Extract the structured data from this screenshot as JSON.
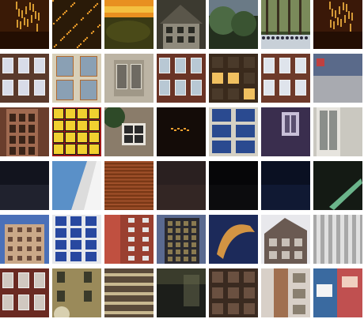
{
  "tiles": [
    {
      "name": "night-facade-lights-1",
      "bg": "#3a1a06",
      "accent": "#f2b23a",
      "kind": "lights"
    },
    {
      "name": "tree-with-lights",
      "bg": "#2a1a08",
      "accent": "#e89a2a",
      "kind": "tree-lights"
    },
    {
      "name": "sunset-hedge",
      "bg": "#4a4010",
      "accent": "#f0a020",
      "kind": "sunset"
    },
    {
      "name": "stone-house",
      "bg": "#3c3a30",
      "accent": "#8f8a7c",
      "kind": "house"
    },
    {
      "name": "trees-dusk",
      "bg": "#24301e",
      "accent": "#4c6a44",
      "kind": "trees"
    },
    {
      "name": "park-crowd",
      "bg": "#3a4a2a",
      "accent": "#c8d0d8",
      "kind": "park"
    },
    {
      "name": "night-facade-lights-2",
      "bg": "#3a1808",
      "accent": "#f0b040",
      "kind": "lights"
    },
    {
      "name": "brick-windows-1",
      "bg": "#5a3a2c",
      "accent": "#d8dce8",
      "kind": "brick-win"
    },
    {
      "name": "cream-facade-windows",
      "bg": "#d8cfb8",
      "accent": "#b06a30",
      "kind": "cream-win"
    },
    {
      "name": "stone-window",
      "bg": "#bcb4a4",
      "accent": "#6e6a62",
      "kind": "stone-win"
    },
    {
      "name": "brick-windows-2",
      "bg": "#6a3426",
      "accent": "#b8c8d4",
      "kind": "brick-win"
    },
    {
      "name": "night-windows-1",
      "bg": "#3a2a1c",
      "accent": "#f0c060",
      "kind": "night-win"
    },
    {
      "name": "brick-windows-3",
      "bg": "#6e3a2a",
      "accent": "#dfe4ec",
      "kind": "brick-win"
    },
    {
      "name": "street-pavement",
      "bg": "#7a7c84",
      "accent": "#a8aab0",
      "kind": "street"
    },
    {
      "name": "brick-tower",
      "bg": "#6a3e2c",
      "accent": "#a06a50",
      "kind": "tower"
    },
    {
      "name": "red-lit-facade",
      "bg": "#a01818",
      "accent": "#f0d030",
      "kind": "red-lit"
    },
    {
      "name": "cottage-window",
      "bg": "#8a7c6a",
      "accent": "#2e4a28",
      "kind": "cottage"
    },
    {
      "name": "dark-night-lights",
      "bg": "#140c08",
      "accent": "#f0a030",
      "kind": "dark-lights"
    },
    {
      "name": "blue-glass-windows",
      "bg": "#d4d0c4",
      "accent": "#2a4a90",
      "kind": "glass"
    },
    {
      "name": "purple-facade-window",
      "bg": "#3a2e4e",
      "accent": "#c8c0d8",
      "kind": "purple"
    },
    {
      "name": "pale-window",
      "bg": "#cac8c0",
      "accent": "#8a8e8a",
      "kind": "pale"
    },
    {
      "name": "dark-navy-panel",
      "bg": "#12141e",
      "accent": "#2a2c38",
      "kind": "dark"
    },
    {
      "name": "sky-building-edge",
      "bg": "#5a90c8",
      "accent": "#dcdcdc",
      "kind": "sky-edge"
    },
    {
      "name": "orange-louvers",
      "bg": "#7a3816",
      "accent": "#a0502a",
      "kind": "louvers"
    },
    {
      "name": "dark-brick-night",
      "bg": "#2a2020",
      "accent": "#3a2c28",
      "kind": "dark"
    },
    {
      "name": "black-panel",
      "bg": "#060608",
      "accent": "#101012",
      "kind": "dark"
    },
    {
      "name": "dark-blue-night",
      "bg": "#0a1022",
      "accent": "#142040",
      "kind": "dark"
    },
    {
      "name": "green-neon-streak",
      "bg": "#141a14",
      "accent": "#7ad0a0",
      "kind": "neon"
    },
    {
      "name": "beige-highrise",
      "bg": "#4a70b8",
      "accent": "#caa888",
      "kind": "highrise"
    },
    {
      "name": "blue-window-grid",
      "bg": "#e6e8ec",
      "accent": "#2848a0",
      "kind": "blue-grid"
    },
    {
      "name": "red-brick-highrise",
      "bg": "#9a4030",
      "accent": "#e4e4e4",
      "kind": "red-rise"
    },
    {
      "name": "dark-skyscraper",
      "bg": "#2a2a30",
      "accent": "#8a7a50",
      "kind": "sky-dark"
    },
    {
      "name": "orange-light-trail",
      "bg": "#1c2a5a",
      "accent": "#e8a040",
      "kind": "trail"
    },
    {
      "name": "ornate-building",
      "bg": "#e8e8ec",
      "accent": "#6a5a52",
      "kind": "ornate"
    },
    {
      "name": "grey-columns",
      "bg": "#a8a8a8",
      "accent": "#e0e0e0",
      "kind": "columns"
    },
    {
      "name": "red-brick-row",
      "bg": "#6a2a22",
      "accent": "#d0c8c0",
      "kind": "brick-win"
    },
    {
      "name": "tan-facade-tree",
      "bg": "#9a8a5a",
      "accent": "#3a3a2a",
      "kind": "tan"
    },
    {
      "name": "balconies",
      "bg": "#5a4a3a",
      "accent": "#c8b890",
      "kind": "balcony"
    },
    {
      "name": "dark-night-street",
      "bg": "#1c1e1a",
      "accent": "#6a6c50",
      "kind": "dark-street"
    },
    {
      "name": "dark-brick-building",
      "bg": "#3a2a20",
      "accent": "#6a5040",
      "kind": "dark-brick"
    },
    {
      "name": "brick-column",
      "bg": "#a07050",
      "accent": "#d8d0c8",
      "kind": "column"
    },
    {
      "name": "colorful-facade",
      "bg": "#3a6aa0",
      "accent": "#c05050",
      "kind": "colorful"
    }
  ]
}
